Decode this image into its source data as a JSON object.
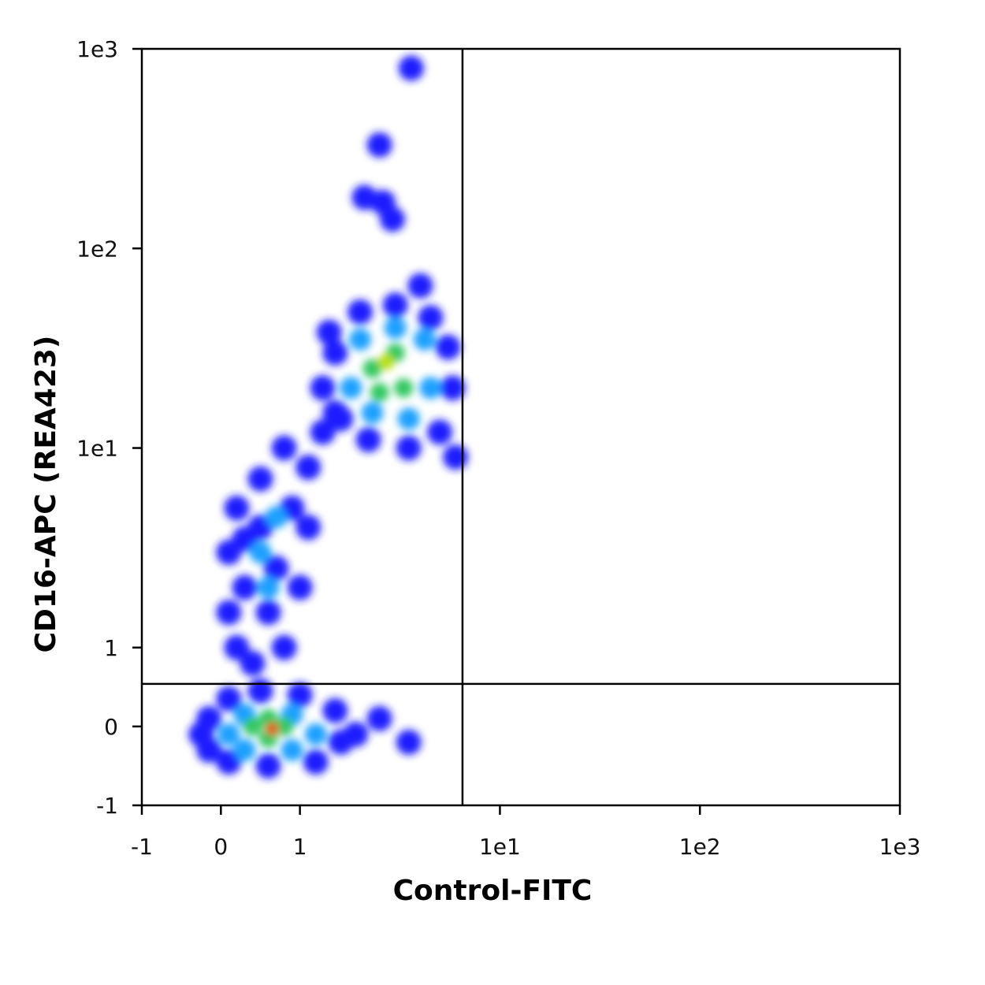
{
  "chart_data": {
    "type": "density_scatter",
    "xlabel": "Control-FITC",
    "ylabel": "CD16-APC (REA423)",
    "scale": "biexponential",
    "xlim": [
      -1,
      1000
    ],
    "ylim": [
      -1,
      1000
    ],
    "xticks": [
      -1,
      0,
      1,
      {
        "value": 10,
        "label": "1e1"
      },
      {
        "value": 100,
        "label": "1e2"
      },
      {
        "value": 1000,
        "label": "1e3"
      }
    ],
    "yticks": [
      -1,
      0,
      1,
      {
        "value": 10,
        "label": "1e1"
      },
      {
        "value": 100,
        "label": "1e2"
      },
      {
        "value": 1000,
        "label": "1e3"
      }
    ],
    "quadrant": {
      "x": 6.5,
      "y": 0.54
    },
    "palette": [
      "#1a1aff",
      "#1aa0ff",
      "#30c860",
      "#b8e000",
      "#f04010"
    ],
    "x": [
      -0.15,
      -0.15,
      0.1,
      0.5,
      1.0,
      1.5,
      1.6,
      1.2,
      0.6,
      0.1,
      -0.25,
      1.9,
      2.5,
      3.5,
      0.1,
      0.1,
      0.2,
      0.5,
      0.8,
      1.1,
      1.1,
      1.0,
      0.8,
      0.4,
      0.2,
      0.3,
      0.5,
      0.7,
      0.6,
      0.9,
      1.3,
      1.5,
      0.3,
      1.3,
      1.4,
      2.0,
      3.0,
      4.5,
      5.5,
      5.8,
      5.0,
      3.5,
      2.2,
      1.6,
      1.5,
      4.0,
      6.0,
      3.6,
      2.5,
      2.1,
      2.6,
      2.9,
      0.1,
      0.3,
      0.9,
      1.2,
      0.9,
      0.3,
      0.5,
      0.6,
      0.7,
      1.8,
      2.0,
      3.0,
      4.2,
      4.5,
      3.5,
      2.3,
      0.4,
      0.8,
      0.6,
      0.6,
      2.3,
      3.0,
      3.3,
      2.5,
      0.65,
      2.7
    ],
    "y": [
      -0.3,
      0.1,
      0.35,
      0.45,
      0.4,
      0.2,
      -0.2,
      -0.45,
      -0.5,
      -0.45,
      -0.1,
      -0.1,
      0.1,
      -0.2,
      1.5,
      3,
      5,
      7,
      10,
      8,
      4,
      2,
      1,
      0.8,
      1,
      2,
      4,
      2.5,
      1.5,
      5,
      12,
      15,
      3.5,
      20,
      38,
      48,
      52,
      45,
      32,
      20,
      12,
      10,
      11,
      14,
      30,
      65,
      9,
      800,
      330,
      180,
      170,
      140,
      -0.1,
      0.15,
      0.15,
      -0.1,
      -0.3,
      -0.3,
      3,
      2,
      4.5,
      20,
      35,
      40,
      35,
      20,
      14,
      15,
      0,
      0,
      0.1,
      -0.15,
      25,
      30,
      20,
      19,
      -0.03,
      27
    ],
    "density": [
      0,
      0,
      0,
      0,
      0,
      0,
      0,
      0,
      0,
      0,
      0,
      0,
      0,
      0,
      0,
      0,
      0,
      0,
      0,
      0,
      0,
      0,
      0,
      0,
      0,
      0,
      0,
      0,
      0,
      0,
      0,
      0,
      0,
      0,
      0,
      0,
      0,
      0,
      0,
      0,
      0,
      0,
      0,
      0,
      0,
      0,
      0,
      0,
      0,
      0,
      0,
      0,
      1,
      1,
      1,
      1,
      1,
      1,
      1,
      1,
      1,
      1,
      1,
      1,
      1,
      1,
      1,
      1,
      2,
      2,
      2,
      2,
      2,
      2,
      2,
      2,
      4,
      3
    ]
  }
}
